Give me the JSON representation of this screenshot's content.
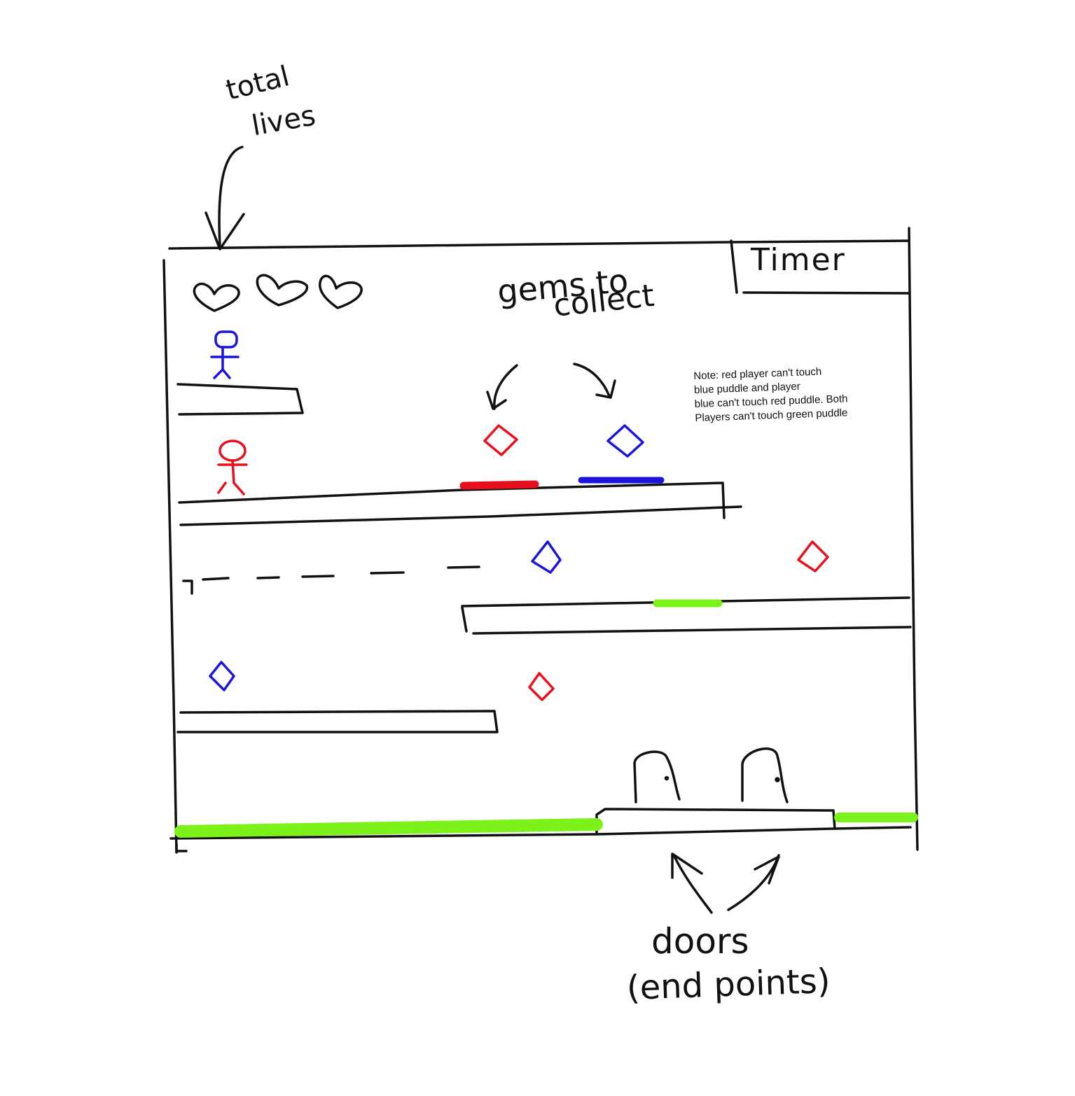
{
  "hud": {
    "lives_total": 3,
    "lives_remaining": 3,
    "timer_label": "Timer"
  },
  "annotations": {
    "lives_line1": "total",
    "lives_line2": "lives",
    "gems_line1": "gems to",
    "gems_line2": "collect",
    "doors_line1": "doors",
    "doors_line2": "(end points)"
  },
  "note": {
    "line1": "Note: red player can't touch",
    "line2": "blue puddle and player",
    "line3": "blue can't touch red puddle. Both",
    "line4": "Players can't touch green puddle"
  },
  "colors": {
    "ink": "#111111",
    "red": "#e8101c",
    "blue": "#1c14d8",
    "green": "#7cf21a",
    "background": "#ffffff"
  },
  "players": [
    {
      "name": "blue-player",
      "color": "blue"
    },
    {
      "name": "red-player",
      "color": "red"
    }
  ],
  "gems": [
    {
      "color": "red",
      "shape": "diamond-icon"
    },
    {
      "color": "blue",
      "shape": "diamond-icon"
    },
    {
      "color": "blue",
      "shape": "diamond-icon"
    },
    {
      "color": "red",
      "shape": "diamond-icon"
    },
    {
      "color": "blue",
      "shape": "diamond-icon"
    },
    {
      "color": "red",
      "shape": "diamond-icon"
    }
  ],
  "puddles": [
    {
      "color": "red"
    },
    {
      "color": "blue"
    },
    {
      "color": "green"
    },
    {
      "color": "green"
    },
    {
      "color": "green"
    }
  ],
  "doors": [
    {
      "name": "door-1"
    },
    {
      "name": "door-2"
    }
  ]
}
